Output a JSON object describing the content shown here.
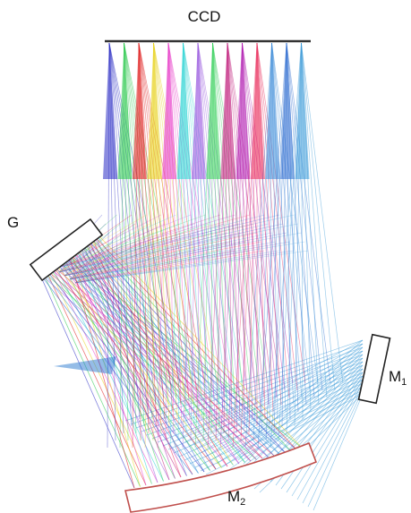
{
  "labels": {
    "ccd": "CCD",
    "grating": "G",
    "m1_base": "M",
    "m1_sub": "1",
    "m2_base": "M",
    "m2_sub": "2"
  },
  "beam_colors": [
    "#2a2cc4",
    "#27c84a",
    "#e01a1a",
    "#e8d21a",
    "#e838c8",
    "#2ad4d4",
    "#9a5ae0",
    "#34d05a",
    "#c01a7a",
    "#b01ab0",
    "#ea2a5a",
    "#3a8ad8",
    "#2a6ad0",
    "#3a9ad8"
  ],
  "colors": {
    "mirror_fill": "#ffffff",
    "mirror_stroke": "#222222",
    "m2_stroke": "#c0504d",
    "detector": "#333333"
  }
}
